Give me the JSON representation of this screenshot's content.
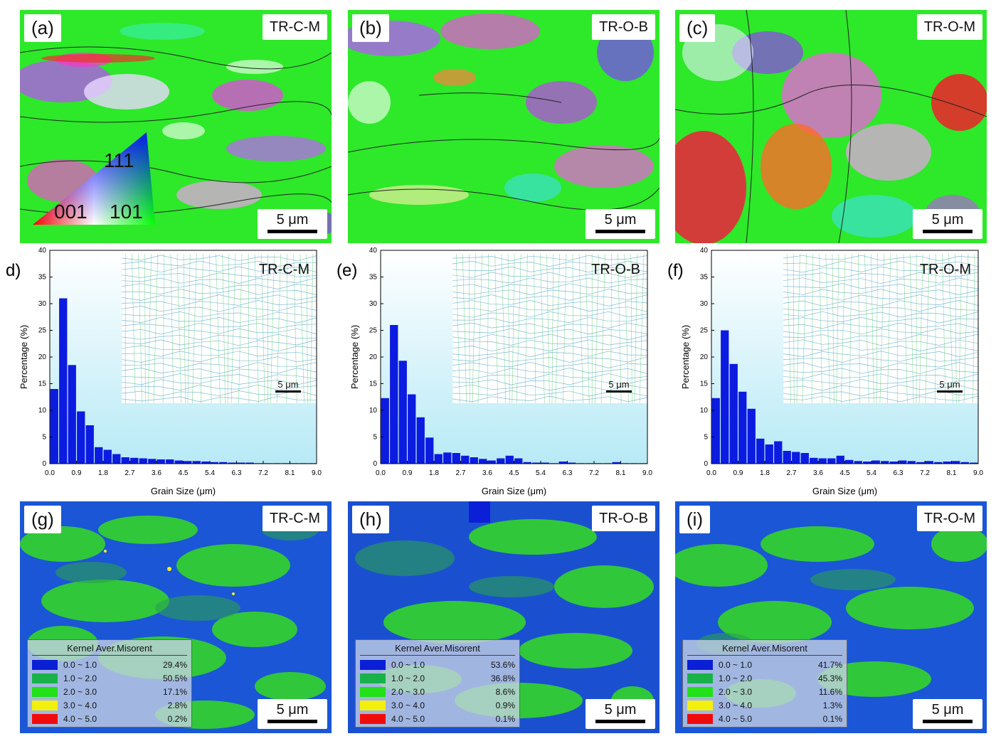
{
  "ipf_panels": [
    {
      "letter": "(a)",
      "sample": "TR-C-M",
      "scale": "5 μm"
    },
    {
      "letter": "(b)",
      "sample": "TR-O-B",
      "scale": "5 μm"
    },
    {
      "letter": "(c)",
      "sample": "TR-O-M",
      "scale": "5 μm"
    }
  ],
  "ipf_legend": {
    "v111": "111",
    "v001": "001",
    "v101": "101"
  },
  "chart_data": [
    {
      "type": "bar",
      "letter": "d)",
      "sample": "TR-C-M",
      "inset_scale": "5 μm",
      "xlabel": "Grain Size (μm)",
      "ylabel": "Percentage (%)",
      "ylim": [
        0,
        40
      ],
      "xlim": [
        0,
        9
      ],
      "xticks": [
        "0.0",
        "0.9",
        "1.8",
        "2.7",
        "3.6",
        "4.5",
        "5.4",
        "6.3",
        "7.2",
        "8.1",
        "9.0"
      ],
      "yticks": [
        "0",
        "5",
        "10",
        "15",
        "20",
        "25",
        "30",
        "35",
        "40"
      ],
      "x": [
        0.15,
        0.45,
        0.75,
        1.05,
        1.35,
        1.65,
        1.95,
        2.25,
        2.55,
        2.85,
        3.15,
        3.45,
        3.75,
        4.05,
        4.35,
        4.65,
        4.95,
        5.25,
        5.55,
        5.85,
        6.15,
        6.45,
        6.75,
        7.05,
        7.35,
        7.65,
        7.95,
        8.25,
        8.55,
        8.85
      ],
      "values": [
        14,
        31,
        18.5,
        9.8,
        7.2,
        3.1,
        2.6,
        1.8,
        1.2,
        1.1,
        1.0,
        0.9,
        0.8,
        0.8,
        0.6,
        0.5,
        0.5,
        0.4,
        0.3,
        0.3,
        0.2,
        0.2,
        0.2,
        0.1,
        0.1,
        0.1,
        0.1,
        0.1,
        0.1,
        0.1
      ]
    },
    {
      "type": "bar",
      "letter": "(e)",
      "sample": "TR-O-B",
      "inset_scale": "5 μm",
      "xlabel": "Grain Size (μm)",
      "ylabel": "Percentage (%)",
      "ylim": [
        0,
        40
      ],
      "xlim": [
        0,
        9
      ],
      "xticks": [
        "0.0",
        "0.9",
        "1.8",
        "2.7",
        "3.6",
        "4.5",
        "5.4",
        "6.3",
        "7.2",
        "8.1",
        "9.0"
      ],
      "yticks": [
        "0",
        "5",
        "10",
        "15",
        "20",
        "25",
        "30",
        "35",
        "40"
      ],
      "x": [
        0.15,
        0.45,
        0.75,
        1.05,
        1.35,
        1.65,
        1.95,
        2.25,
        2.55,
        2.85,
        3.15,
        3.45,
        3.75,
        4.05,
        4.35,
        4.65,
        4.95,
        5.25,
        5.55,
        5.85,
        6.15,
        6.45,
        6.75,
        7.05,
        7.35,
        7.65,
        7.95,
        8.25,
        8.55,
        8.85
      ],
      "values": [
        12.3,
        26,
        19.3,
        13,
        8.7,
        4.9,
        1.8,
        2.1,
        2.0,
        1.5,
        1.2,
        0.9,
        0.6,
        1.0,
        1.5,
        1.0,
        0.3,
        0.2,
        0.2,
        0.1,
        0.4,
        0.2,
        0.1,
        0.1,
        0.1,
        0.1,
        0.3,
        0.1,
        0.1,
        0.1
      ]
    },
    {
      "type": "bar",
      "letter": "(f)",
      "sample": "TR-O-M",
      "inset_scale": "5 μm",
      "xlabel": "Grain Size (μm)",
      "ylabel": "Percentage (%)",
      "ylim": [
        0,
        40
      ],
      "xlim": [
        0,
        9
      ],
      "xticks": [
        "0.0",
        "0.9",
        "1.8",
        "2.7",
        "3.6",
        "4.5",
        "5.4",
        "6.3",
        "7.2",
        "8.1",
        "9.0"
      ],
      "yticks": [
        "0",
        "5",
        "10",
        "15",
        "20",
        "25",
        "30",
        "35",
        "40"
      ],
      "x": [
        0.15,
        0.45,
        0.75,
        1.05,
        1.35,
        1.65,
        1.95,
        2.25,
        2.55,
        2.85,
        3.15,
        3.45,
        3.75,
        4.05,
        4.35,
        4.65,
        4.95,
        5.25,
        5.55,
        5.85,
        6.15,
        6.45,
        6.75,
        7.05,
        7.35,
        7.65,
        7.95,
        8.25,
        8.55,
        8.85
      ],
      "values": [
        12.3,
        25,
        18.7,
        13.5,
        10.3,
        4.7,
        3.6,
        4.2,
        2.4,
        2.2,
        2.0,
        1.1,
        1.0,
        1.0,
        1.5,
        0.7,
        0.5,
        0.4,
        0.6,
        0.5,
        0.4,
        0.6,
        0.5,
        0.3,
        0.5,
        0.3,
        0.4,
        0.5,
        0.3,
        0.2
      ]
    }
  ],
  "kam_panels": [
    {
      "letter": "(g)",
      "sample": "TR-C-M",
      "scale": "5 μm",
      "legend_title": "Kernel Aver.Misorent",
      "rows": [
        {
          "range": "0.0 ~ 1.0",
          "pct": "29.4%",
          "color": "#0a1fd6"
        },
        {
          "range": "1.0 ~ 2.0",
          "pct": "50.5%",
          "color": "#19b24a"
        },
        {
          "range": "2.0 ~ 3.0",
          "pct": "17.1%",
          "color": "#22e019"
        },
        {
          "range": "3.0 ~ 4.0",
          "pct": "2.8%",
          "color": "#f3f00e"
        },
        {
          "range": "4.0 ~ 5.0",
          "pct": "0.2%",
          "color": "#f00b0b"
        }
      ]
    },
    {
      "letter": "(h)",
      "sample": "TR-O-B",
      "scale": "5 μm",
      "legend_title": "Kernel Aver.Misorent",
      "rows": [
        {
          "range": "0.0 ~ 1.0",
          "pct": "53.6%",
          "color": "#0a1fd6"
        },
        {
          "range": "1.0 ~ 2.0",
          "pct": "36.8%",
          "color": "#19b24a"
        },
        {
          "range": "2.0 ~ 3.0",
          "pct": "8.6%",
          "color": "#22e019"
        },
        {
          "range": "3.0 ~ 4.0",
          "pct": "0.9%",
          "color": "#f3f00e"
        },
        {
          "range": "4.0 ~ 5.0",
          "pct": "0.1%",
          "color": "#f00b0b"
        }
      ]
    },
    {
      "letter": "(i)",
      "sample": "TR-O-M",
      "scale": "5 μm",
      "legend_title": "Kernel Aver.Misorent",
      "rows": [
        {
          "range": "0.0 ~ 1.0",
          "pct": "41.7%",
          "color": "#0a1fd6"
        },
        {
          "range": "1.0 ~ 2.0",
          "pct": "45.3%",
          "color": "#19b24a"
        },
        {
          "range": "2.0 ~ 3.0",
          "pct": "11.6%",
          "color": "#22e019"
        },
        {
          "range": "3.0 ~ 4.0",
          "pct": "1.3%",
          "color": "#f3f00e"
        },
        {
          "range": "4.0 ~ 5.0",
          "pct": "0.1%",
          "color": "#f00b0b"
        }
      ]
    }
  ]
}
